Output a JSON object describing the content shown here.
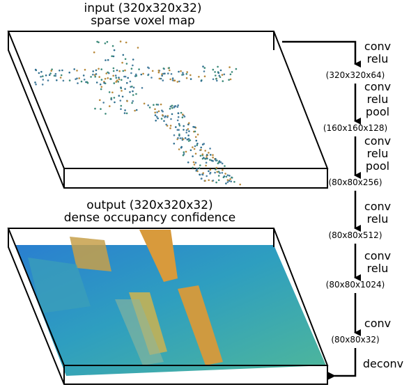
{
  "input": {
    "title": "input (320x320x32)",
    "subtitle": "sparse voxel map"
  },
  "output": {
    "title": "output (320x320x32)",
    "subtitle": "dense occupancy confidence"
  },
  "layers": [
    {
      "ops": [
        "conv",
        "relu"
      ],
      "shape": "(320x320x64)"
    },
    {
      "ops": [
        "conv",
        "relu",
        "pool"
      ],
      "shape": "(160x160x128)"
    },
    {
      "ops": [
        "conv",
        "relu",
        "pool"
      ],
      "shape": "(80x80x256)"
    },
    {
      "ops": [
        "conv",
        "relu"
      ],
      "shape": "(80x80x512)"
    },
    {
      "ops": [
        "conv",
        "relu"
      ],
      "shape": "(80x80x1024)"
    },
    {
      "ops": [
        "conv"
      ],
      "shape": "(80x80x32)"
    }
  ],
  "final_op": "deconv"
}
